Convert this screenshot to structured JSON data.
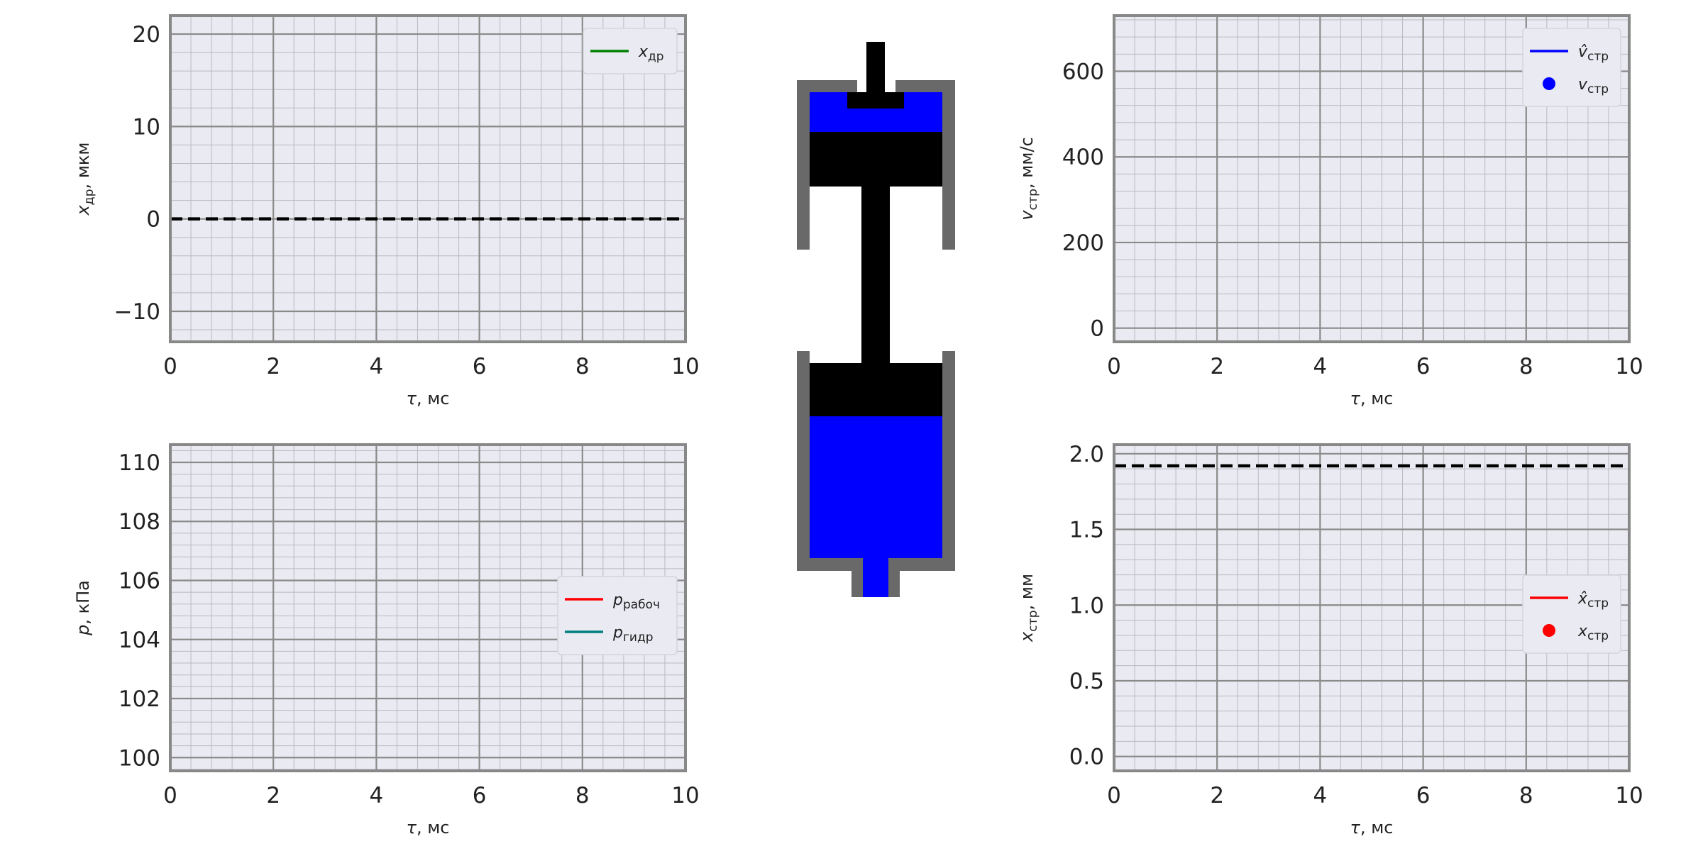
{
  "colors": {
    "plot_background": "#eaeaf2",
    "frame": "#888888",
    "fluid": "#0000ff",
    "steel": "#000000",
    "housing": "#696969"
  },
  "diagram": {
    "type": "hydraulic-cylinder-animation",
    "parts": [
      "housing",
      "fluid",
      "piston",
      "rod",
      "inlet-port"
    ]
  },
  "chart_data": [
    {
      "id": "top-left",
      "type": "line",
      "xlabel": "τ, мс",
      "ylabel_symbol": "x",
      "ylabel_sub": "др",
      "ylabel_unit": ", мкм",
      "xlim": [
        0,
        10
      ],
      "ylim": [
        -13.3,
        22
      ],
      "xticks": [
        0,
        2,
        4,
        6,
        8,
        10
      ],
      "yticks": [
        -10,
        0,
        10,
        20
      ],
      "ytick_labels": [
        "−10",
        "0",
        "10",
        "20"
      ],
      "grid": true,
      "minor_grid": true,
      "legend_position": "upper-right",
      "series": [
        {
          "name_symbol": "x",
          "name_sub": "др",
          "color": "#008000",
          "style": "line",
          "values": []
        }
      ],
      "reference_lines": [
        {
          "y": 0,
          "style": "dashed",
          "color": "#000000"
        }
      ]
    },
    {
      "id": "top-right",
      "type": "line",
      "xlabel": "τ, мс",
      "ylabel_symbol": "v",
      "ylabel_sub": "стр",
      "ylabel_unit": ", мм/с",
      "xlim": [
        0,
        10
      ],
      "ylim": [
        -32,
        730
      ],
      "xticks": [
        0,
        2,
        4,
        6,
        8,
        10
      ],
      "yticks": [
        0,
        200,
        400,
        600
      ],
      "ytick_labels": [
        "0",
        "200",
        "400",
        "600"
      ],
      "grid": true,
      "minor_grid": true,
      "legend_position": "upper-right",
      "series": [
        {
          "name_symbol": "v̂",
          "name_sub": "стр",
          "color": "#0000ff",
          "style": "line",
          "values": []
        },
        {
          "name_symbol": "v",
          "name_sub": "стр",
          "color": "#0000ff",
          "style": "marker",
          "values": []
        }
      ],
      "reference_lines": []
    },
    {
      "id": "bottom-left",
      "type": "line",
      "xlabel": "τ, мс",
      "ylabel_symbol": "p",
      "ylabel_sub": "",
      "ylabel_unit": ", кПа",
      "xlim": [
        0,
        10
      ],
      "ylim": [
        99.55,
        110.6
      ],
      "xticks": [
        0,
        2,
        4,
        6,
        8,
        10
      ],
      "yticks": [
        100,
        102,
        104,
        106,
        108,
        110
      ],
      "ytick_labels": [
        "100",
        "102",
        "104",
        "106",
        "108",
        "110"
      ],
      "grid": true,
      "minor_grid": true,
      "legend_position": "center-right",
      "series": [
        {
          "name_symbol": "p",
          "name_sub": "рабоч",
          "color": "#ff0000",
          "style": "line",
          "values": []
        },
        {
          "name_symbol": "p",
          "name_sub": "гидр",
          "color": "#008080",
          "style": "line",
          "values": []
        }
      ],
      "reference_lines": []
    },
    {
      "id": "bottom-right",
      "type": "line",
      "xlabel": "τ, мс",
      "ylabel_symbol": "x",
      "ylabel_sub": "стр",
      "ylabel_unit": ", мм",
      "xlim": [
        0,
        10
      ],
      "ylim": [
        -0.095,
        2.06
      ],
      "xticks": [
        0,
        2,
        4,
        6,
        8,
        10
      ],
      "yticks": [
        0.0,
        0.5,
        1.0,
        1.5,
        2.0
      ],
      "ytick_labels": [
        "0.0",
        "0.5",
        "1.0",
        "1.5",
        "2.0"
      ],
      "grid": true,
      "minor_grid": true,
      "legend_position": "center-right",
      "series": [
        {
          "name_symbol": "x̂",
          "name_sub": "стр",
          "color": "#ff0000",
          "style": "line",
          "values": []
        },
        {
          "name_symbol": "x",
          "name_sub": "стр",
          "color": "#ff0000",
          "style": "marker",
          "values": []
        }
      ],
      "reference_lines": [
        {
          "y": 1.92,
          "style": "dashed",
          "color": "#000000"
        }
      ]
    }
  ]
}
